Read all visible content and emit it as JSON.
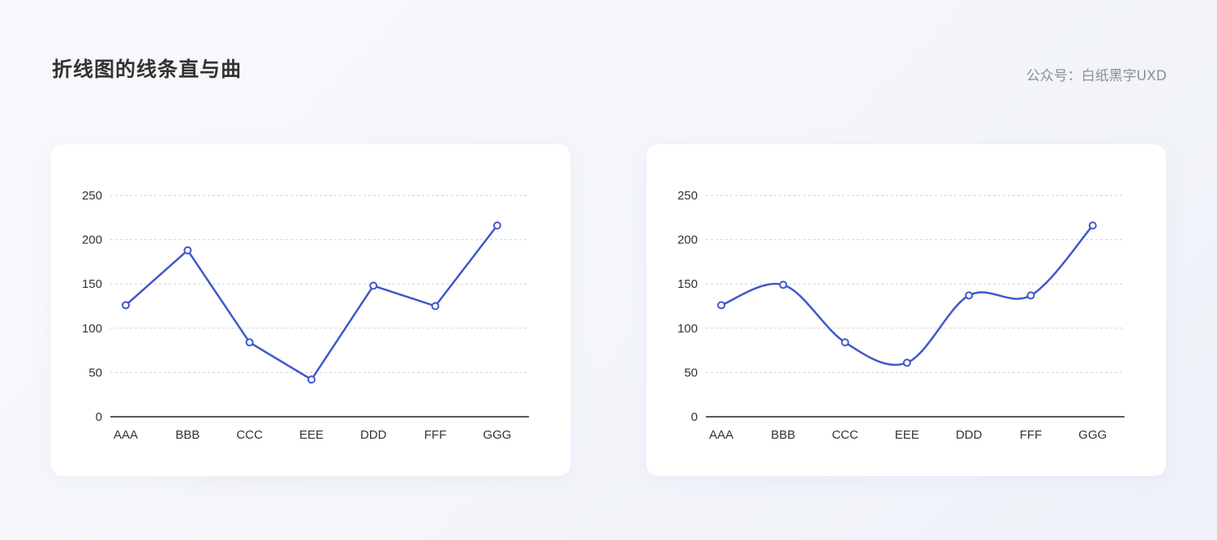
{
  "header": {
    "title": "折线图的线条直与曲",
    "credit": "公众号：白纸黑字UXD"
  },
  "colors": {
    "line": "#4257c9",
    "grid": "#cfd2d8",
    "axis": "#222222",
    "text": "#333333"
  },
  "chart_data": [
    {
      "type": "line",
      "line_style": "straight",
      "categories": [
        "AAA",
        "BBB",
        "CCC",
        "EEE",
        "DDD",
        "FFF",
        "GGG"
      ],
      "series": [
        {
          "values": [
            126,
            188,
            84,
            42,
            148,
            125,
            216
          ]
        }
      ],
      "yticks": [
        0,
        50,
        100,
        150,
        200,
        250
      ],
      "ylim": [
        0,
        250
      ],
      "grid": true,
      "markers": true
    },
    {
      "type": "line",
      "line_style": "smooth",
      "categories": [
        "AAA",
        "BBB",
        "CCC",
        "EEE",
        "DDD",
        "FFF",
        "GGG"
      ],
      "series": [
        {
          "values": [
            126,
            149,
            84,
            61,
            137,
            137,
            216
          ]
        }
      ],
      "yticks": [
        0,
        50,
        100,
        150,
        200,
        250
      ],
      "ylim": [
        0,
        250
      ],
      "grid": true,
      "markers": true
    }
  ]
}
